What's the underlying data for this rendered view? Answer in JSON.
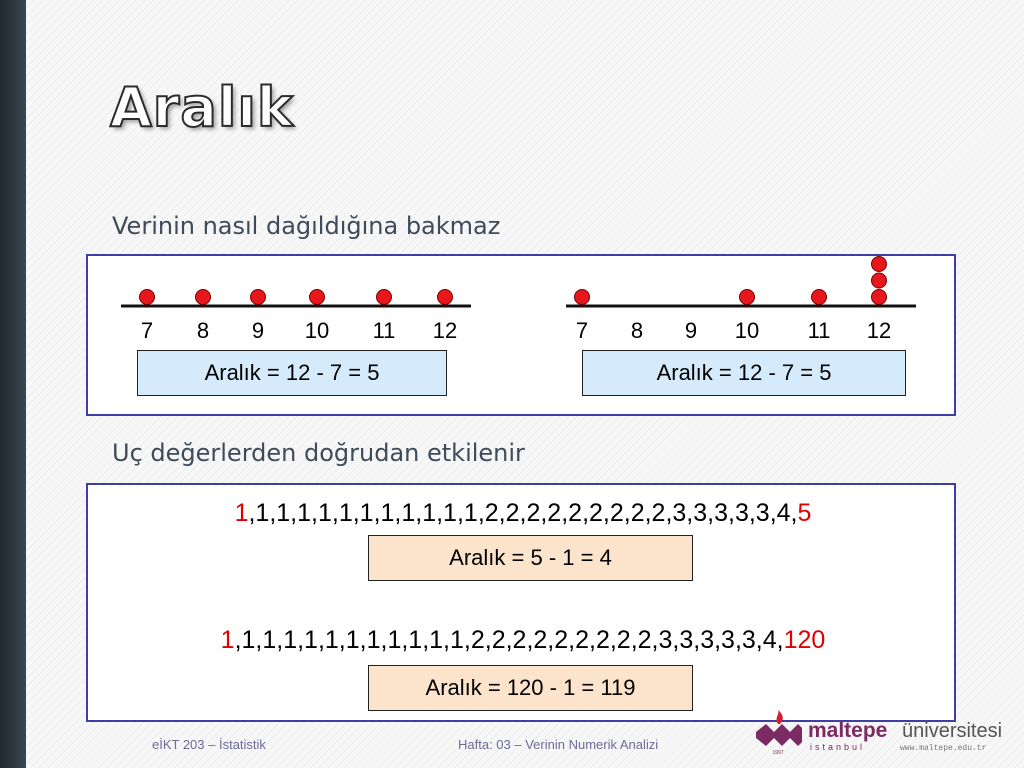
{
  "title": "Aralık",
  "section1": {
    "heading": "Verinin nasıl dağıldığına bakmaz",
    "left_plot": {
      "ticks": [
        "7",
        "8",
        "9",
        "10",
        "11",
        "12"
      ],
      "dots": [
        1,
        1,
        1,
        1,
        1,
        1
      ],
      "range_label": "Aralık = 12 - 7 = 5"
    },
    "right_plot": {
      "ticks": [
        "7",
        "8",
        "9",
        "10",
        "11",
        "12"
      ],
      "dots": [
        1,
        0,
        0,
        1,
        1,
        3
      ],
      "range_label": "Aralık = 12 - 7 = 5"
    }
  },
  "section2": {
    "heading": "Uç değerlerden doğrudan etkilenir",
    "series1": {
      "first": "1",
      "middle": ",1,1,1,1,1,1,1,1,1,1,1,2,2,2,2,2,2,2,2,2,3,3,3,3,3,4,",
      "last": "5",
      "range_label": "Aralık = 5 - 1 = 4"
    },
    "series2": {
      "first": "1",
      "middle": ",1,1,1,1,1,1,1,1,1,1,1,2,2,2,2,2,2,2,2,2,3,3,3,3,3,4,",
      "last": "120",
      "range_label": "Aralık = 120 - 1 = 119"
    }
  },
  "footer": {
    "course": "eİKT 203 – İstatistik",
    "week": "Hafta: 03 – Verinin Numerik Analizi"
  },
  "logo": {
    "name": "maltepe",
    "suffix": "üniversitesi",
    "city": "istanbul",
    "url": "www.maltepe.edu.tr",
    "year": "1997"
  },
  "colors": {
    "dot": "#e8171b",
    "panel_border": "#3f3fa3",
    "blue_box": "#d5ebfb",
    "orange_box": "#fbe3cc",
    "highlight": "#e00000",
    "logo_purple": "#7b2a63",
    "logo_red": "#d41e2c"
  }
}
